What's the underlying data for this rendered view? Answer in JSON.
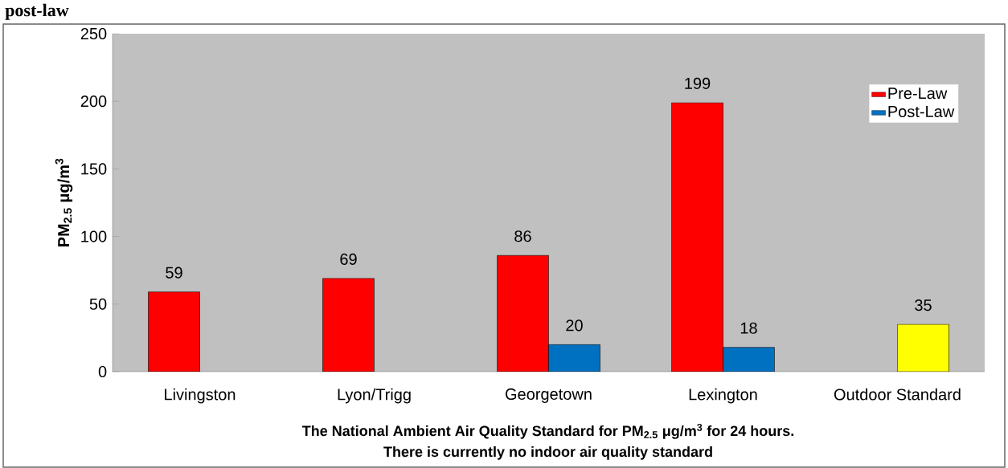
{
  "chart_data": {
    "type": "bar",
    "title": "post-law",
    "categories": [
      "Livingston",
      "Lyon/Trigg",
      "Georgetown",
      "Lexington",
      "Outdoor Standard"
    ],
    "series": [
      {
        "name": "Pre-Law",
        "color": "#ff0000",
        "values": [
          59,
          69,
          86,
          199,
          null
        ]
      },
      {
        "name": "Post-Law",
        "color": "#0070c0",
        "colors": [
          "#0070c0",
          "#0070c0",
          "#0070c0",
          "#0070c0",
          "#ffff00"
        ],
        "values": [
          null,
          null,
          20,
          18,
          35
        ]
      }
    ],
    "ylabel": "PM$_{2.5}$ μg/m$^{3}$",
    "xlabel": "The National Ambient Air Quality Standard for PM$_{2.5}$ μg/m$^{3}$ for 24 hours.",
    "annotations": [
      "There is currently no indoor air quality standard"
    ],
    "ylim": [
      0,
      250
    ],
    "yticks": [
      0,
      50,
      100,
      150,
      200,
      250
    ],
    "data_labels": true,
    "legend": "top right",
    "grid": false
  }
}
